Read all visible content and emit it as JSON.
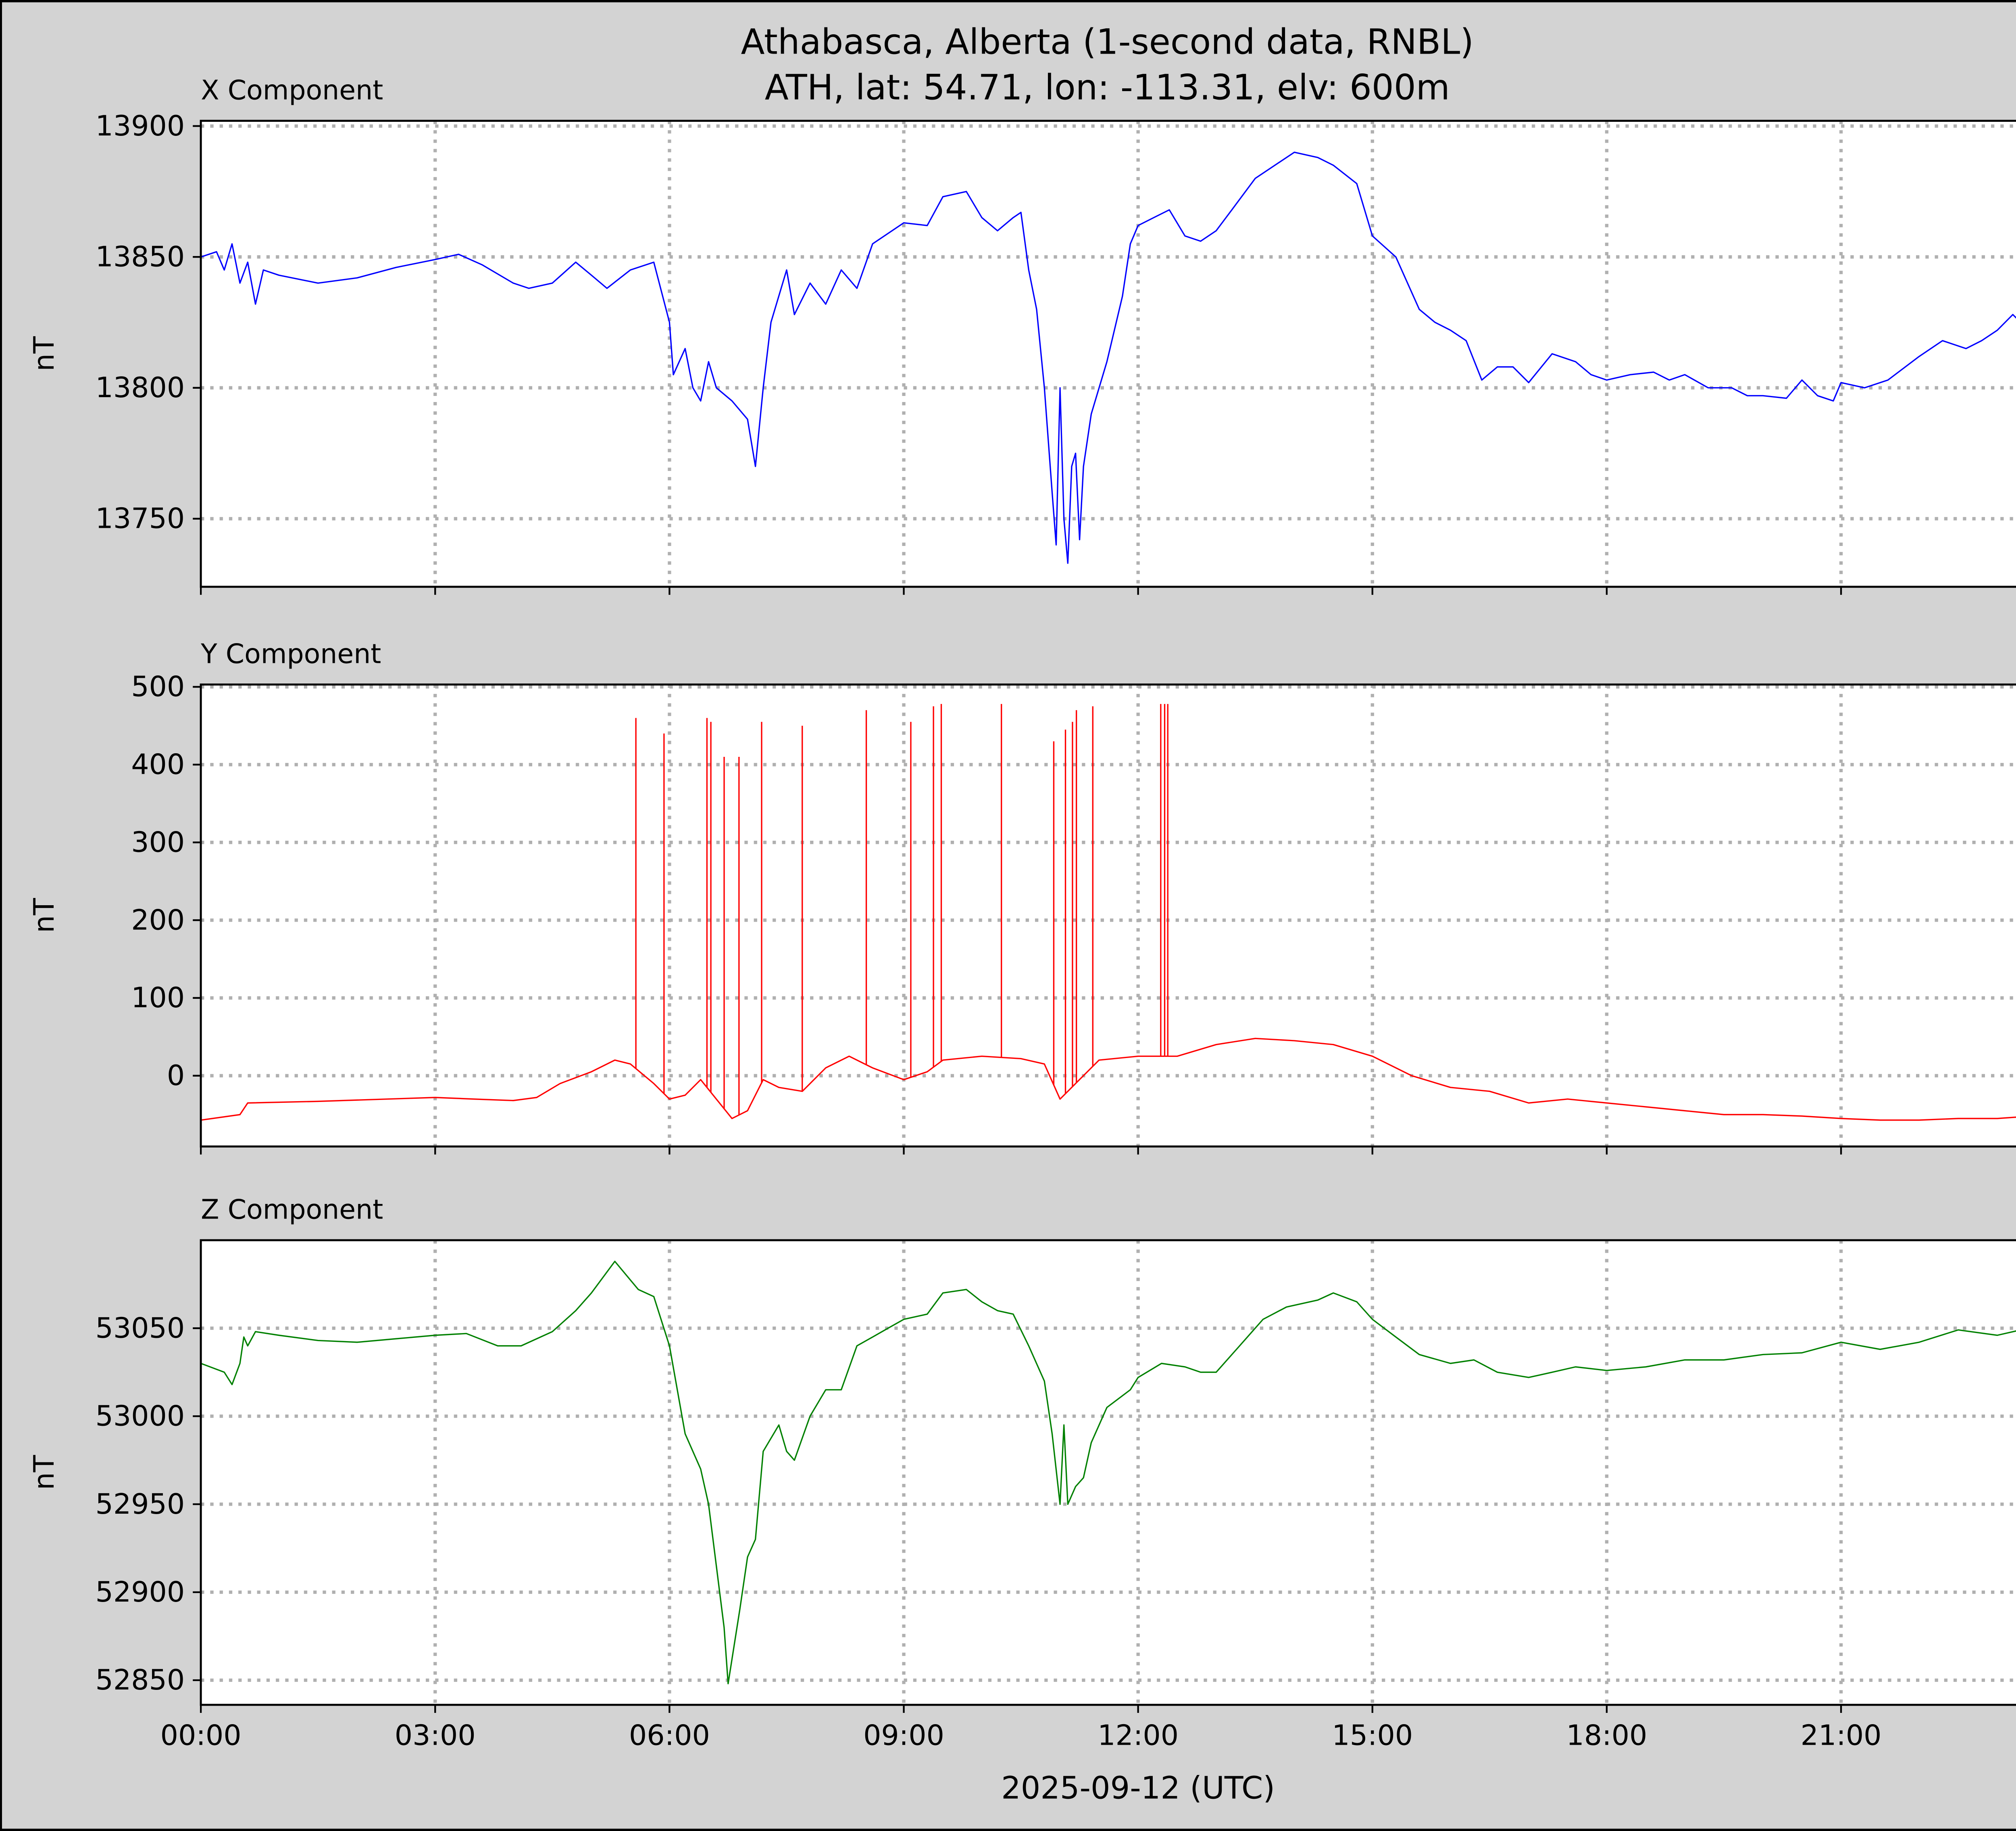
{
  "title_line1": "Athabasca, Alberta (1-second data, RNBL)",
  "title_line2": "ATH, lat: 54.71, lon: -113.31, elv: 600m",
  "xlabel": "2025-09-12 (UTC)",
  "colors": {
    "background": "#d3d3d3",
    "x": "#0000ff",
    "y": "#ff0000",
    "z": "#008000",
    "grid": "#b0b0b0"
  },
  "chart_data": [
    {
      "type": "line",
      "title": "X Component",
      "ylabel": "nT",
      "xlim": [
        0,
        24
      ],
      "ylim": [
        13724,
        13902
      ],
      "x_ticks": [
        0,
        3,
        6,
        9,
        12,
        15,
        18,
        21
      ],
      "x_tick_labels": [
        "00:00",
        "03:00",
        "06:00",
        "09:00",
        "12:00",
        "15:00",
        "18:00",
        "21:00"
      ],
      "y_ticks": [
        13750,
        13800,
        13850,
        13900
      ],
      "y_tick_labels": [
        "13750",
        "13800",
        "13850",
        "13900"
      ],
      "grid": true,
      "series": [
        {
          "name": "X",
          "color": "#0000ff",
          "x": [
            0,
            0.2,
            0.3,
            0.4,
            0.5,
            0.6,
            0.7,
            0.8,
            1.0,
            1.5,
            2.0,
            2.5,
            3.0,
            3.3,
            3.6,
            4.0,
            4.2,
            4.5,
            4.8,
            5.0,
            5.2,
            5.5,
            5.8,
            6.0,
            6.05,
            6.2,
            6.3,
            6.4,
            6.5,
            6.6,
            6.8,
            7.0,
            7.1,
            7.2,
            7.3,
            7.5,
            7.6,
            7.8,
            8.0,
            8.2,
            8.4,
            8.6,
            9.0,
            9.3,
            9.5,
            9.8,
            10.0,
            10.2,
            10.4,
            10.5,
            10.6,
            10.7,
            10.8,
            10.9,
            10.95,
            11.0,
            11.05,
            11.1,
            11.15,
            11.2,
            11.25,
            11.3,
            11.4,
            11.6,
            11.8,
            11.9,
            12.0,
            12.2,
            12.4,
            12.6,
            12.8,
            13.0,
            13.2,
            13.5,
            13.8,
            14.0,
            14.3,
            14.5,
            14.8,
            15.0,
            15.3,
            15.6,
            15.8,
            16.0,
            16.2,
            16.4,
            16.6,
            16.8,
            17.0,
            17.3,
            17.6,
            17.8,
            18.0,
            18.3,
            18.6,
            18.8,
            19.0,
            19.3,
            19.6,
            19.8,
            20.0,
            20.3,
            20.5,
            20.7,
            20.9,
            21.0,
            21.3,
            21.6,
            22.0,
            22.3,
            22.6,
            22.8,
            23.0,
            23.2,
            23.4,
            23.6,
            23.8,
            24.0
          ],
          "y": [
            13850,
            13852,
            13845,
            13855,
            13840,
            13848,
            13832,
            13845,
            13843,
            13840,
            13842,
            13846,
            13849,
            13851,
            13847,
            13840,
            13838,
            13840,
            13848,
            13843,
            13838,
            13845,
            13848,
            13825,
            13805,
            13815,
            13800,
            13795,
            13810,
            13800,
            13795,
            13788,
            13770,
            13800,
            13825,
            13845,
            13828,
            13840,
            13832,
            13845,
            13838,
            13855,
            13863,
            13862,
            13873,
            13875,
            13865,
            13860,
            13865,
            13867,
            13845,
            13830,
            13800,
            13760,
            13740,
            13800,
            13750,
            13733,
            13770,
            13775,
            13742,
            13770,
            13790,
            13810,
            13835,
            13855,
            13862,
            13865,
            13868,
            13858,
            13856,
            13860,
            13868,
            13880,
            13886,
            13890,
            13888,
            13885,
            13878,
            13858,
            13850,
            13830,
            13825,
            13822,
            13818,
            13803,
            13808,
            13808,
            13802,
            13813,
            13810,
            13805,
            13803,
            13805,
            13806,
            13803,
            13805,
            13800,
            13800,
            13797,
            13797,
            13796,
            13803,
            13797,
            13795,
            13802,
            13800,
            13803,
            13812,
            13818,
            13815,
            13818,
            13822,
            13828,
            13822,
            13818,
            13818,
            13826
          ]
        }
      ]
    },
    {
      "type": "line",
      "title": "Y Component",
      "ylabel": "nT",
      "xlim": [
        0,
        24
      ],
      "ylim": [
        -91,
        503
      ],
      "x_ticks": [
        0,
        3,
        6,
        9,
        12,
        15,
        18,
        21
      ],
      "y_ticks": [
        0,
        100,
        200,
        300,
        400,
        500
      ],
      "y_tick_labels": [
        "0",
        "100",
        "200",
        "300",
        "400",
        "500"
      ],
      "grid": true,
      "series": [
        {
          "name": "Y",
          "color": "#ff0000",
          "x": [
            0,
            0.5,
            0.6,
            1.5,
            3.0,
            3.5,
            4.0,
            4.3,
            4.6,
            5.0,
            5.3,
            5.5,
            5.8,
            6.0,
            6.2,
            6.4,
            6.6,
            6.8,
            7.0,
            7.2,
            7.4,
            7.7,
            8.0,
            8.3,
            8.6,
            9.0,
            9.3,
            9.5,
            10.0,
            10.5,
            10.8,
            11.0,
            11.2,
            11.5,
            12.0,
            12.5,
            13.0,
            13.5,
            14.0,
            14.5,
            15.0,
            15.5,
            16.0,
            16.5,
            17.0,
            17.5,
            18.0,
            18.5,
            19.0,
            19.5,
            20.0,
            20.5,
            21.0,
            21.5,
            22.0,
            22.5,
            23.0,
            24.0
          ],
          "y": [
            -57,
            -50,
            -35,
            -33,
            -28,
            -30,
            -32,
            -28,
            -10,
            5,
            20,
            15,
            -10,
            -30,
            -25,
            -5,
            -30,
            -55,
            -45,
            -5,
            -15,
            -20,
            10,
            25,
            10,
            -5,
            5,
            20,
            25,
            22,
            15,
            -30,
            -10,
            20,
            25,
            25,
            40,
            48,
            45,
            40,
            25,
            0,
            -15,
            -20,
            -35,
            -30,
            -35,
            -40,
            -45,
            -50,
            -50,
            -52,
            -55,
            -57,
            -57,
            -55,
            -55,
            -48
          ],
          "spikes": [
            [
              5.57,
              460
            ],
            [
              5.93,
              440
            ],
            [
              6.48,
              460
            ],
            [
              6.53,
              455
            ],
            [
              6.7,
              410
            ],
            [
              6.89,
              410
            ],
            [
              7.18,
              455
            ],
            [
              7.7,
              450
            ],
            [
              8.52,
              470
            ],
            [
              9.09,
              455
            ],
            [
              9.38,
              475
            ],
            [
              9.48,
              478
            ],
            [
              10.25,
              478
            ],
            [
              10.92,
              430
            ],
            [
              11.07,
              445
            ],
            [
              11.16,
              455
            ],
            [
              11.21,
              470
            ],
            [
              11.42,
              475
            ],
            [
              12.29,
              478
            ],
            [
              12.34,
              478
            ],
            [
              12.38,
              478
            ]
          ]
        }
      ]
    },
    {
      "type": "line",
      "title": "Z Component",
      "ylabel": "nT",
      "xlim": [
        0,
        24
      ],
      "ylim": [
        52836,
        53100
      ],
      "x_ticks": [
        0,
        3,
        6,
        9,
        12,
        15,
        18,
        21
      ],
      "x_tick_labels": [
        "00:00",
        "03:00",
        "06:00",
        "09:00",
        "12:00",
        "15:00",
        "18:00",
        "21:00"
      ],
      "y_ticks": [
        52850,
        52900,
        52950,
        53000,
        53050
      ],
      "y_tick_labels": [
        "52850",
        "52900",
        "52950",
        "53000",
        "53050"
      ],
      "grid": true,
      "series": [
        {
          "name": "Z",
          "color": "#008000",
          "x": [
            0,
            0.3,
            0.4,
            0.5,
            0.55,
            0.6,
            0.7,
            1.0,
            1.5,
            2.0,
            2.5,
            3.0,
            3.4,
            3.8,
            4.1,
            4.5,
            4.8,
            5.0,
            5.3,
            5.6,
            5.8,
            6.0,
            6.2,
            6.4,
            6.5,
            6.7,
            6.75,
            6.9,
            7.0,
            7.1,
            7.2,
            7.4,
            7.5,
            7.6,
            7.8,
            8.0,
            8.2,
            8.4,
            8.6,
            8.8,
            9.0,
            9.3,
            9.5,
            9.8,
            10.0,
            10.2,
            10.4,
            10.6,
            10.8,
            10.9,
            11.0,
            11.05,
            11.1,
            11.2,
            11.3,
            11.4,
            11.6,
            11.9,
            12.0,
            12.3,
            12.6,
            12.8,
            13.0,
            13.3,
            13.6,
            13.9,
            14.3,
            14.5,
            14.8,
            15.0,
            15.3,
            15.6,
            16.0,
            16.3,
            16.6,
            17.0,
            17.3,
            17.6,
            18.0,
            18.5,
            19.0,
            19.5,
            20.0,
            20.5,
            21.0,
            21.5,
            22.0,
            22.5,
            23.0,
            23.3,
            23.6,
            24.0
          ],
          "y": [
            53030,
            53025,
            53018,
            53030,
            53045,
            53040,
            53048,
            53046,
            53043,
            53042,
            53044,
            53046,
            53047,
            53040,
            53040,
            53048,
            53060,
            53070,
            53088,
            53072,
            53068,
            53040,
            52990,
            52970,
            52950,
            52880,
            52848,
            52890,
            52920,
            52930,
            52980,
            52995,
            52980,
            52975,
            53000,
            53015,
            53015,
            53040,
            53045,
            53050,
            53055,
            53058,
            53070,
            53072,
            53065,
            53060,
            53058,
            53040,
            53020,
            52990,
            52950,
            52995,
            52950,
            52960,
            52965,
            52985,
            53005,
            53015,
            53022,
            53030,
            53028,
            53025,
            53025,
            53040,
            53055,
            53062,
            53066,
            53070,
            53065,
            53055,
            53045,
            53035,
            53030,
            53032,
            53025,
            53022,
            53025,
            53028,
            53026,
            53028,
            53032,
            53032,
            53035,
            53036,
            53042,
            53038,
            53042,
            53049,
            53046,
            53049,
            53044,
            53048
          ]
        }
      ]
    }
  ]
}
